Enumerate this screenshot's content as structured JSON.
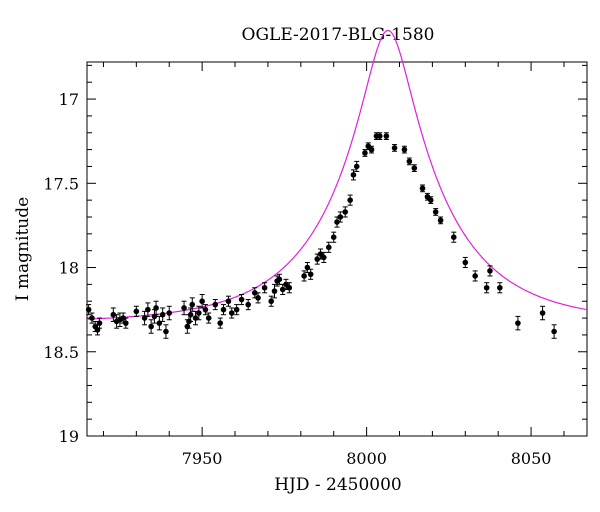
{
  "chart_data": {
    "type": "scatter",
    "title": "OGLE-2017-BLG-1580",
    "xlabel": "HJD - 2450000",
    "ylabel": "I magnitude",
    "xlim": [
      7915,
      8067
    ],
    "ylim": [
      17.0,
      19.0
    ],
    "y_inverted": true,
    "display_y_range": [
      16.78,
      19.0
    ],
    "x_ticks": [
      7950,
      8000,
      8050
    ],
    "x_tick_labels": [
      "7950",
      "8000",
      "8050"
    ],
    "y_ticks": [
      17,
      17.5,
      18,
      18.5,
      19
    ],
    "y_tick_labels": [
      "17",
      "17.5",
      "18",
      "18.5",
      "19"
    ],
    "grid": false,
    "legend": "none",
    "model_curve": {
      "color": "#e020e0",
      "baseline_mag": 18.33,
      "t0": 8006.5,
      "u0": 0.205,
      "tE": 33.0
    },
    "series": [
      {
        "marker_color": "#000000",
        "x": [
          7915.5,
          7916.5,
          7917.5,
          7918.2,
          7918.8,
          7923.0,
          7924.0,
          7925.0,
          7926.0,
          7926.8,
          7930.0,
          7932.5,
          7933.5,
          7934.5,
          7935.5,
          7936.0,
          7937.0,
          7938.0,
          7939.0,
          7940.0,
          7944.5,
          7945.5,
          7946.0,
          7946.5,
          7947.0,
          7948.0,
          7949.0,
          7950.0,
          7951.0,
          7952.0,
          7954.0,
          7955.5,
          7956.5,
          7958.0,
          7959.0,
          7960.5,
          7962.0,
          7964.0,
          7966.0,
          7967.0,
          7969.0,
          7971.0,
          7972.0,
          7972.8,
          7973.5,
          7974.5,
          7975.5,
          7976.5,
          7981.0,
          7982.0,
          7983.0,
          7985.0,
          7986.0,
          7987.0,
          7988.5,
          7990.0,
          7991.0,
          7992.0,
          7993.5,
          7995.0,
          7996.0,
          7997.0,
          7999.5,
          8000.5,
          8001.5,
          8003.0,
          8004.0,
          8006.0,
          8008.5,
          8011.5,
          8013.0,
          8014.5,
          8017.0,
          8018.5,
          8019.5,
          8021.0,
          8022.5,
          8026.5,
          8030.0,
          8033.0,
          8036.5,
          8037.5,
          8040.5,
          8046.0,
          8053.5,
          8057.0
        ],
        "y": [
          18.25,
          18.3,
          18.35,
          18.37,
          18.33,
          18.28,
          18.32,
          18.31,
          18.3,
          18.33,
          18.26,
          18.3,
          18.25,
          18.35,
          18.29,
          18.24,
          18.33,
          18.28,
          18.38,
          18.27,
          18.24,
          18.35,
          18.32,
          18.28,
          18.22,
          18.3,
          18.27,
          18.2,
          18.25,
          18.3,
          18.22,
          18.33,
          18.25,
          18.2,
          18.27,
          18.25,
          18.19,
          18.22,
          18.15,
          18.18,
          18.12,
          18.2,
          18.14,
          18.08,
          18.07,
          18.13,
          18.1,
          18.12,
          18.05,
          18.0,
          18.04,
          17.95,
          17.92,
          17.94,
          17.88,
          17.82,
          17.73,
          17.7,
          17.67,
          17.6,
          17.45,
          17.4,
          17.32,
          17.28,
          17.3,
          17.22,
          17.22,
          17.22,
          17.29,
          17.3,
          17.37,
          17.41,
          17.53,
          17.58,
          17.6,
          17.67,
          17.72,
          17.82,
          17.97,
          18.05,
          18.12,
          18.02,
          18.12,
          18.33,
          18.27,
          18.38
        ],
        "y_error": [
          0.03,
          0.03,
          0.03,
          0.03,
          0.03,
          0.04,
          0.04,
          0.04,
          0.03,
          0.03,
          0.03,
          0.04,
          0.04,
          0.04,
          0.04,
          0.04,
          0.04,
          0.04,
          0.04,
          0.04,
          0.04,
          0.04,
          0.04,
          0.04,
          0.04,
          0.04,
          0.04,
          0.04,
          0.03,
          0.03,
          0.03,
          0.03,
          0.03,
          0.03,
          0.03,
          0.03,
          0.03,
          0.03,
          0.03,
          0.03,
          0.03,
          0.03,
          0.04,
          0.03,
          0.03,
          0.03,
          0.03,
          0.03,
          0.03,
          0.03,
          0.03,
          0.03,
          0.03,
          0.03,
          0.03,
          0.03,
          0.03,
          0.03,
          0.03,
          0.03,
          0.03,
          0.03,
          0.02,
          0.02,
          0.02,
          0.02,
          0.02,
          0.02,
          0.02,
          0.02,
          0.02,
          0.02,
          0.02,
          0.02,
          0.02,
          0.02,
          0.02,
          0.03,
          0.03,
          0.03,
          0.03,
          0.03,
          0.03,
          0.04,
          0.04,
          0.04
        ]
      }
    ]
  }
}
